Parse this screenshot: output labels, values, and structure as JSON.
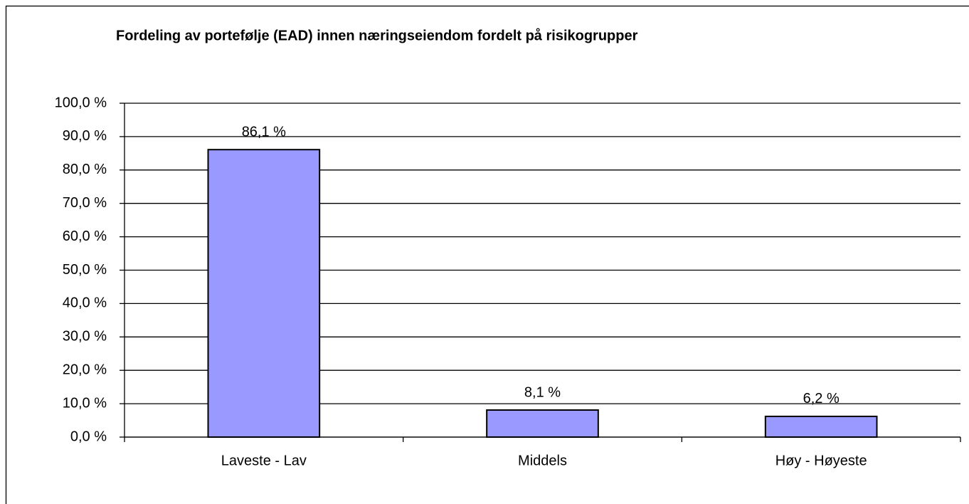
{
  "chart_data": {
    "type": "bar",
    "title": "Fordeling av portefølje (EAD) innen næringseiendom fordelt på risikogrupper",
    "categories": [
      "Laveste - Lav",
      "Middels",
      "Høy - Høyeste"
    ],
    "values": [
      86.1,
      8.1,
      6.2
    ],
    "value_labels": [
      "86,1 %",
      "8,1 %",
      "6,2 %"
    ],
    "color": "#9999ff",
    "ylim": [
      0,
      100
    ],
    "yticks": [
      {
        "value": 0,
        "label": "0,0 %"
      },
      {
        "value": 10,
        "label": "10,0 %"
      },
      {
        "value": 20,
        "label": "20,0 %"
      },
      {
        "value": 30,
        "label": "30,0 %"
      },
      {
        "value": 40,
        "label": "40,0 %"
      },
      {
        "value": 50,
        "label": "50,0 %"
      },
      {
        "value": 60,
        "label": "60,0 %"
      },
      {
        "value": 70,
        "label": "70,0 %"
      },
      {
        "value": 80,
        "label": "80,0 %"
      },
      {
        "value": 90,
        "label": "90,0 %"
      },
      {
        "value": 100,
        "label": "100,0 %"
      }
    ],
    "grid": true
  }
}
